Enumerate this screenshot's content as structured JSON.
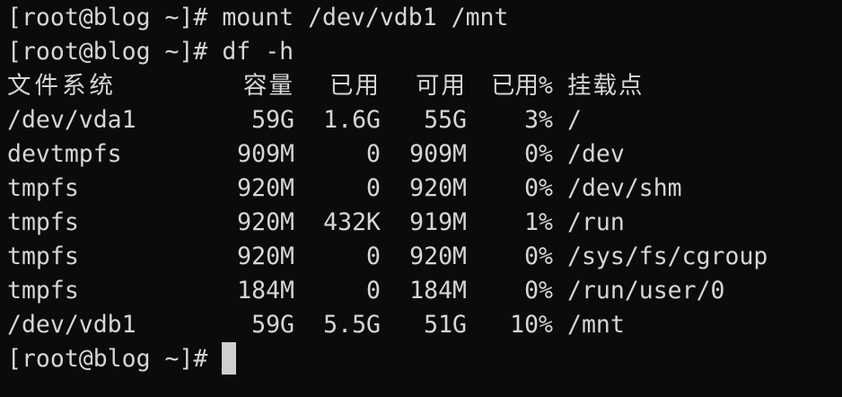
{
  "terminal": {
    "prompt": "[root@blog ~]#",
    "commands": [
      "mount /dev/vdb1 /mnt",
      "df -h"
    ],
    "header": [
      "文件系统",
      "容量",
      "已用",
      "可用",
      "已用%",
      "挂载点"
    ],
    "rows": [
      [
        "/dev/vda1",
        "59G",
        "1.6G",
        "55G",
        "3%",
        "/"
      ],
      [
        "devtmpfs",
        "909M",
        "0",
        "909M",
        "0%",
        "/dev"
      ],
      [
        "tmpfs",
        "920M",
        "0",
        "920M",
        "0%",
        "/dev/shm"
      ],
      [
        "tmpfs",
        "920M",
        "432K",
        "919M",
        "1%",
        "/run"
      ],
      [
        "tmpfs",
        "920M",
        "0",
        "920M",
        "0%",
        "/sys/fs/cgroup"
      ],
      [
        "tmpfs",
        "184M",
        "0",
        "184M",
        "0%",
        "/run/user/0"
      ],
      [
        "/dev/vdb1",
        "59G",
        "5.5G",
        "51G",
        "10%",
        "/mnt"
      ]
    ],
    "colors": {
      "background": "#0b0b0b",
      "text": "#d6d6d6",
      "cursor": "#cfcfcf"
    }
  }
}
